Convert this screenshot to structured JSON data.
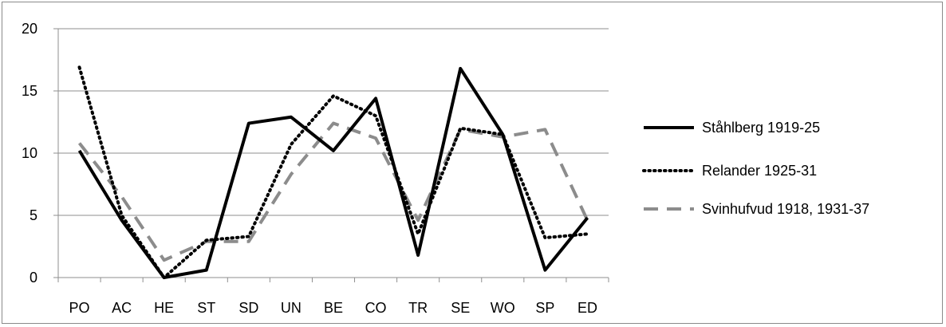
{
  "chart_data": {
    "type": "line",
    "categories": [
      "PO",
      "AC",
      "HE",
      "ST",
      "SD",
      "UN",
      "BE",
      "CO",
      "TR",
      "SE",
      "WO",
      "SP",
      "ED"
    ],
    "ylim": [
      0,
      20
    ],
    "yticks": [
      0,
      5,
      10,
      15,
      20
    ],
    "grid": true,
    "legend_position": "right",
    "series": [
      {
        "name": "Ståhlberg 1919-25",
        "style": "solid",
        "color": "#000000",
        "values": [
          10.2,
          4.6,
          0.0,
          0.6,
          12.4,
          12.9,
          10.2,
          14.4,
          1.8,
          16.8,
          11.5,
          0.6,
          4.8
        ]
      },
      {
        "name": "Relander 1925-31",
        "style": "dotted",
        "color": "#000000",
        "values": [
          16.9,
          5.0,
          0.0,
          3.0,
          3.3,
          10.7,
          14.6,
          13.0,
          3.5,
          12.0,
          11.5,
          3.2,
          3.5
        ]
      },
      {
        "name": "Svinhufvud  1918, 1931-37",
        "style": "dashed",
        "color": "#8c8c8c",
        "values": [
          10.8,
          6.5,
          1.4,
          2.9,
          2.9,
          8.3,
          12.4,
          11.2,
          4.6,
          11.9,
          11.3,
          11.9,
          4.6
        ]
      }
    ]
  }
}
